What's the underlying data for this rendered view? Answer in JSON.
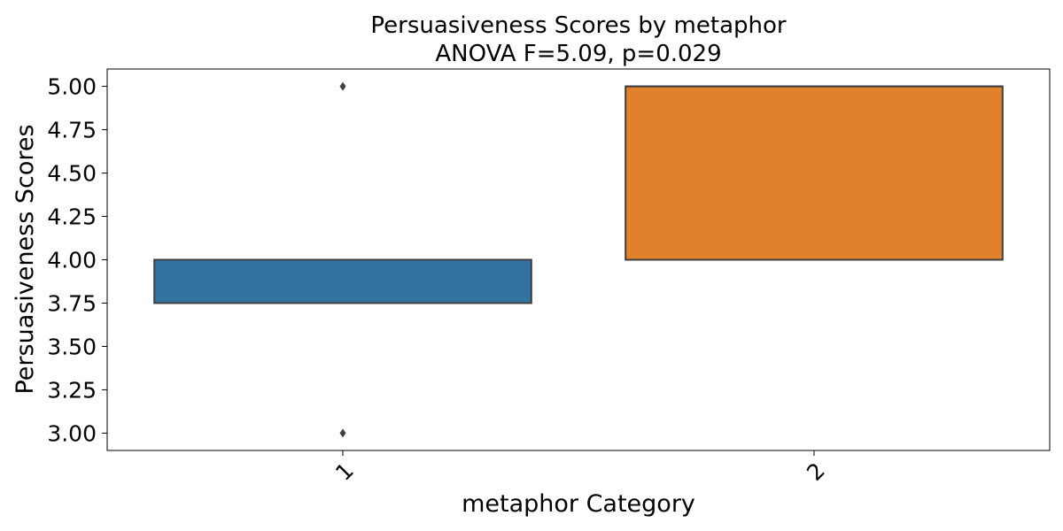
{
  "chart_data": {
    "type": "box",
    "title": "Persuasiveness Scores by metaphor",
    "subtitle": "ANOVA F=5.09, p=0.029",
    "xlabel": "metaphor Category",
    "ylabel": "Persuasiveness Scores",
    "ylim": [
      2.9,
      5.1
    ],
    "yticks": [
      "3.00",
      "3.25",
      "3.50",
      "3.75",
      "4.00",
      "4.25",
      "4.50",
      "4.75",
      "5.00"
    ],
    "categories": [
      "1",
      "2"
    ],
    "boxes": [
      {
        "category": "1",
        "q1": 3.75,
        "median": 4.0,
        "q3": 4.0,
        "whisker_low": 3.75,
        "whisker_high": 4.0,
        "outliers": [
          3.0,
          5.0
        ],
        "color": "#3274a1"
      },
      {
        "category": "2",
        "q1": 4.0,
        "median": 5.0,
        "q3": 5.0,
        "whisker_low": 4.0,
        "whisker_high": 5.0,
        "outliers": [],
        "color": "#e1812c"
      }
    ],
    "grid": false,
    "legend": "none"
  }
}
